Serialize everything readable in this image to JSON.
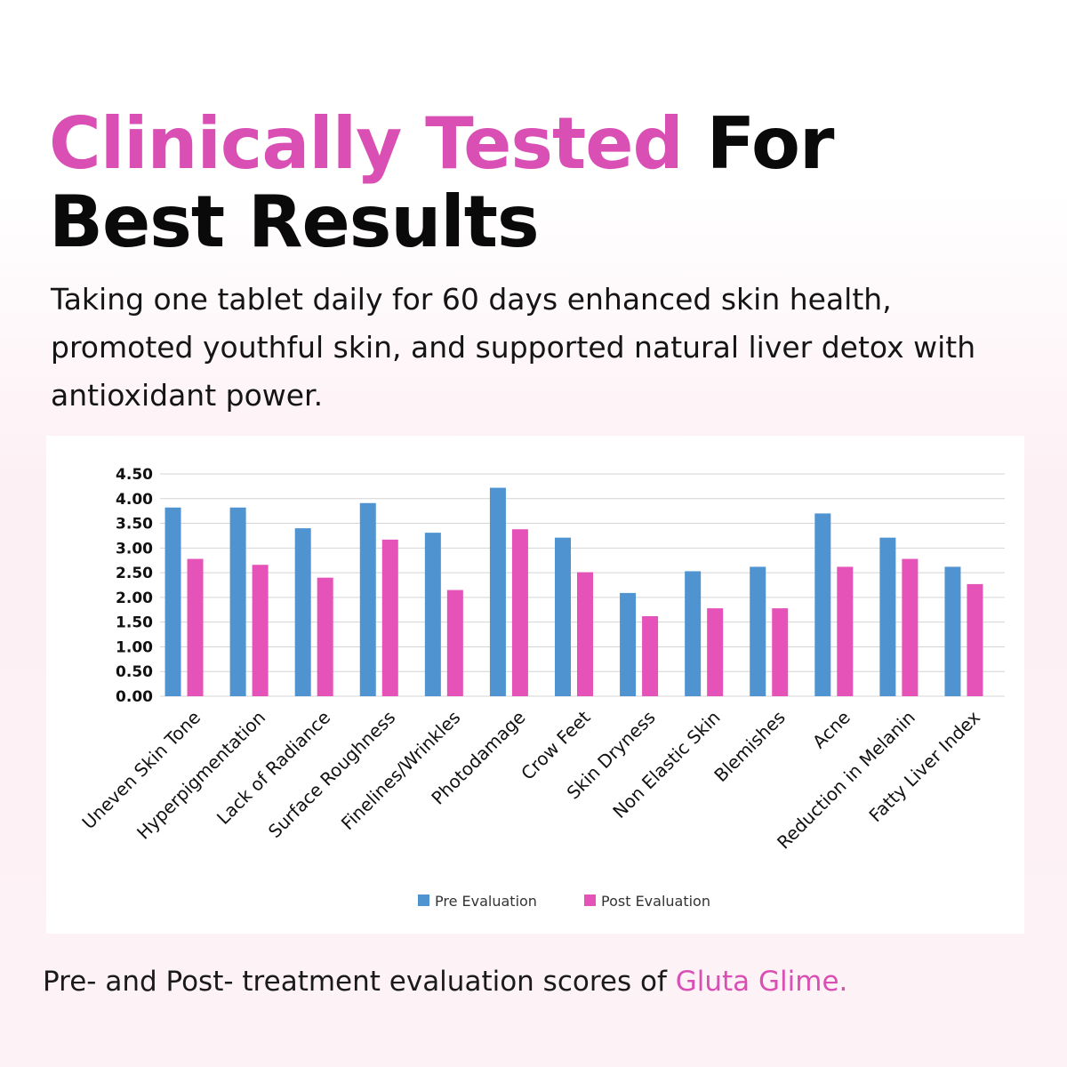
{
  "header": {
    "title_highlight": "Clinically Tested",
    "title_rest_line1": "For",
    "title_line2": "Best Results"
  },
  "subtitle": "Taking one tablet daily for 60 days enhanced skin health, promoted youthful skin, and supported natural liver detox with antioxidant power.",
  "caption": {
    "text": "Pre- and Post- treatment evaluation scores of ",
    "brand": "Gluta Glime."
  },
  "colors": {
    "accent": "#d94fb4",
    "pre": "#4f94d0",
    "post": "#e553b8"
  },
  "chart_data": {
    "type": "bar",
    "categories": [
      "Uneven Skin Tone",
      "Hyperpigmentation",
      "Lack of Radiance",
      "Surface Roughness",
      "Finelines/Wrinkles",
      "Photodamage",
      "Crow Feet",
      "Skin Dryness",
      "Non Elastic Skin",
      "Blemishes",
      "Acne",
      "Reduction in Melanin",
      "Fatty Liver Index"
    ],
    "series": [
      {
        "name": "Pre Evaluation",
        "color": "#4f94d0",
        "values": [
          3.82,
          3.82,
          3.4,
          3.91,
          3.31,
          4.22,
          3.21,
          2.09,
          2.53,
          2.62,
          3.7,
          3.21,
          2.62
        ]
      },
      {
        "name": "Post Evaluation",
        "color": "#e553b8",
        "values": [
          2.78,
          2.66,
          2.4,
          3.17,
          2.15,
          3.38,
          2.51,
          1.62,
          1.78,
          1.78,
          2.62,
          2.78,
          2.27
        ]
      }
    ],
    "yticks": [
      "0.00",
      "0.50",
      "1.00",
      "1.50",
      "2.00",
      "2.50",
      "3.00",
      "3.50",
      "4.00",
      "4.50"
    ],
    "ylim": [
      0,
      4.5
    ],
    "grid": true,
    "legend": "bottom"
  }
}
